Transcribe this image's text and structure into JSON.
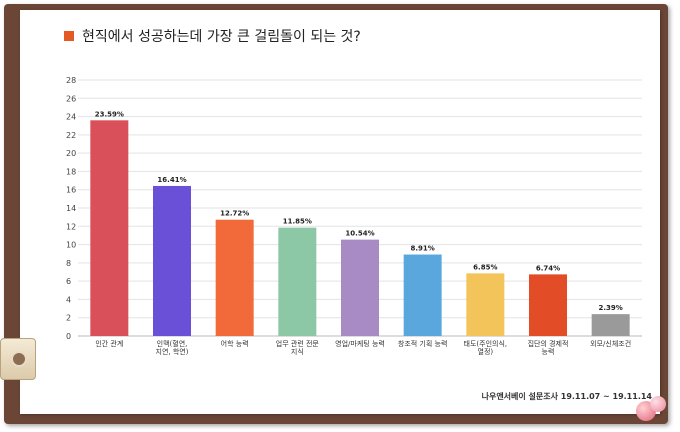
{
  "title": "현직에서 성공하는데 가장 큰 걸림돌이 되는 것?",
  "source": "나우앤서베이 설문조사 19.11.07 ~ 19.11.14",
  "colors": {
    "title_mark": "#e45a25",
    "board": "#6b4636"
  },
  "chart_data": {
    "type": "bar",
    "title": "현직에서 성공하는데 가장 큰 걸림돌이 되는 것?",
    "categories": [
      "인간 관계",
      "인맥(혈연, 지연, 학연)",
      "어학 능력",
      "업무 관련 전문 지식",
      "영업/마케팅 능력",
      "창조적 기획 능력",
      "태도(주인의식, 열정)",
      "집단의 경제적 능력",
      "외모/신체조건"
    ],
    "values": [
      23.59,
      16.41,
      12.72,
      11.85,
      10.54,
      8.91,
      6.85,
      6.74,
      2.39
    ],
    "value_labels": [
      "23.59%",
      "16.41%",
      "12.72%",
      "11.85%",
      "10.54%",
      "8.91%",
      "6.85%",
      "6.74%",
      "2.39%"
    ],
    "colors": [
      "#d9505a",
      "#6a4fd7",
      "#f26a3a",
      "#8cc7a6",
      "#a88ac4",
      "#5aa7de",
      "#f2c45a",
      "#e24d28",
      "#9a9a9a"
    ],
    "ylim": [
      0,
      28
    ],
    "yticks": [
      "0",
      "2",
      "4",
      "6",
      "8",
      "10",
      "12",
      "14",
      "16",
      "18",
      "20",
      "22",
      "24",
      "26",
      "28"
    ],
    "grid": true
  }
}
